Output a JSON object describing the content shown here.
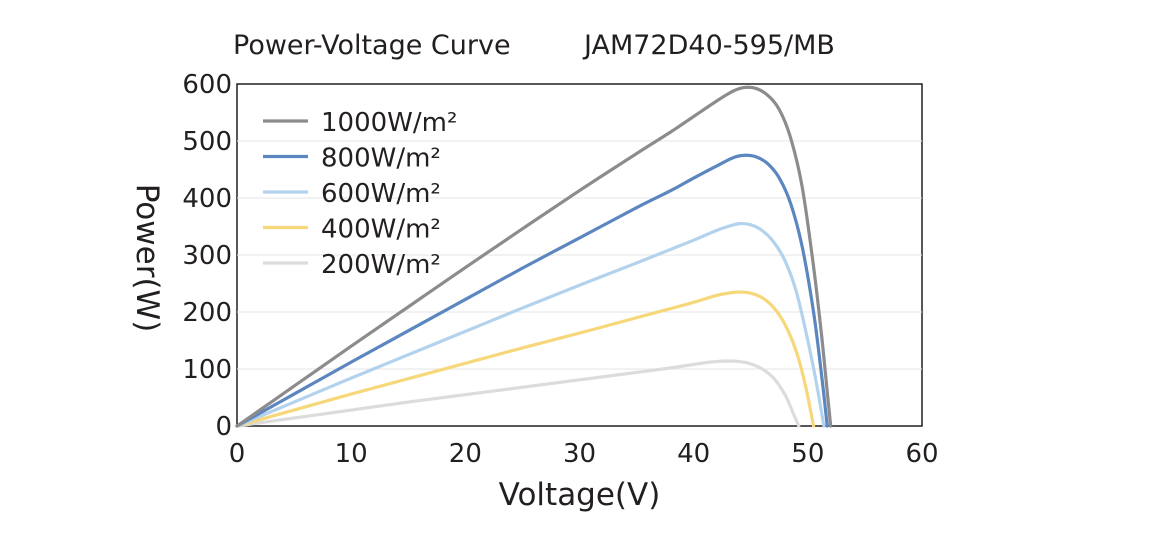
{
  "title": {
    "left": "Power-Voltage Curve",
    "right": "JAM72D40-595/MB"
  },
  "chart_data": {
    "type": "line",
    "title": "Power-Voltage Curve    JAM72D40-595/MB",
    "xlabel": "Voltage(V)",
    "ylabel": "Power(W)",
    "xlim": [
      0,
      60
    ],
    "ylim": [
      0,
      600
    ],
    "xticks": [
      0,
      10,
      20,
      30,
      40,
      50,
      60
    ],
    "yticks": [
      0,
      100,
      200,
      300,
      400,
      500,
      600
    ],
    "grid": "horizontal",
    "legend": "top-left",
    "series": [
      {
        "name": "1000W/m²",
        "color": "#8c8c8e",
        "x": [
          0,
          5,
          10,
          15,
          20,
          25,
          30,
          35,
          38,
          40,
          42,
          43.5,
          44.5,
          45.5,
          46.5,
          47.5,
          48.5,
          49.5,
          50.5,
          51.2,
          51.7,
          52
        ],
        "y": [
          0,
          70,
          140,
          209,
          278,
          346,
          413,
          478,
          516,
          543,
          570,
          588,
          594,
          592,
          580,
          555,
          505,
          420,
          280,
          160,
          60,
          0
        ]
      },
      {
        "name": "800W/m²",
        "color": "#5b86c0",
        "x": [
          0,
          5,
          10,
          15,
          20,
          25,
          30,
          35,
          38,
          40,
          42,
          43.5,
          44.5,
          45.5,
          46.5,
          47.5,
          48.5,
          49.5,
          50.5,
          51.2,
          51.7
        ],
        "y": [
          0,
          56,
          112,
          167,
          222,
          277,
          330,
          383,
          413,
          435,
          456,
          471,
          475,
          472,
          460,
          435,
          390,
          315,
          200,
          90,
          0
        ]
      },
      {
        "name": "600W/m²",
        "color": "#b3d2ee",
        "x": [
          0,
          5,
          10,
          15,
          20,
          25,
          30,
          35,
          38,
          40,
          42,
          43,
          44,
          45,
          46,
          47,
          48,
          49,
          50,
          50.8,
          51.4
        ],
        "y": [
          0,
          42,
          84,
          125,
          166,
          207,
          247,
          286,
          310,
          326,
          343,
          350,
          355,
          353,
          343,
          323,
          290,
          235,
          150,
          70,
          0
        ]
      },
      {
        "name": "400W/m²",
        "color": "#f6d77a",
        "x": [
          0,
          5,
          10,
          15,
          20,
          25,
          30,
          35,
          38,
          40,
          42,
          43,
          44,
          45,
          46,
          47,
          48,
          49,
          49.8,
          50.5
        ],
        "y": [
          0,
          28,
          56,
          83,
          110,
          137,
          163,
          190,
          206,
          217,
          229,
          233,
          235,
          233,
          225,
          208,
          178,
          130,
          70,
          0
        ]
      },
      {
        "name": "200W/m²",
        "color": "#dcdcdc",
        "x": [
          0,
          5,
          10,
          15,
          20,
          25,
          30,
          35,
          38,
          40,
          41,
          42,
          43,
          44,
          45,
          46,
          47,
          48,
          48.6,
          49.2
        ],
        "y": [
          0,
          14,
          28,
          42,
          55,
          68,
          81,
          94,
          102,
          108,
          111,
          113,
          114,
          113,
          109,
          100,
          84,
          55,
          28,
          0
        ]
      }
    ]
  }
}
